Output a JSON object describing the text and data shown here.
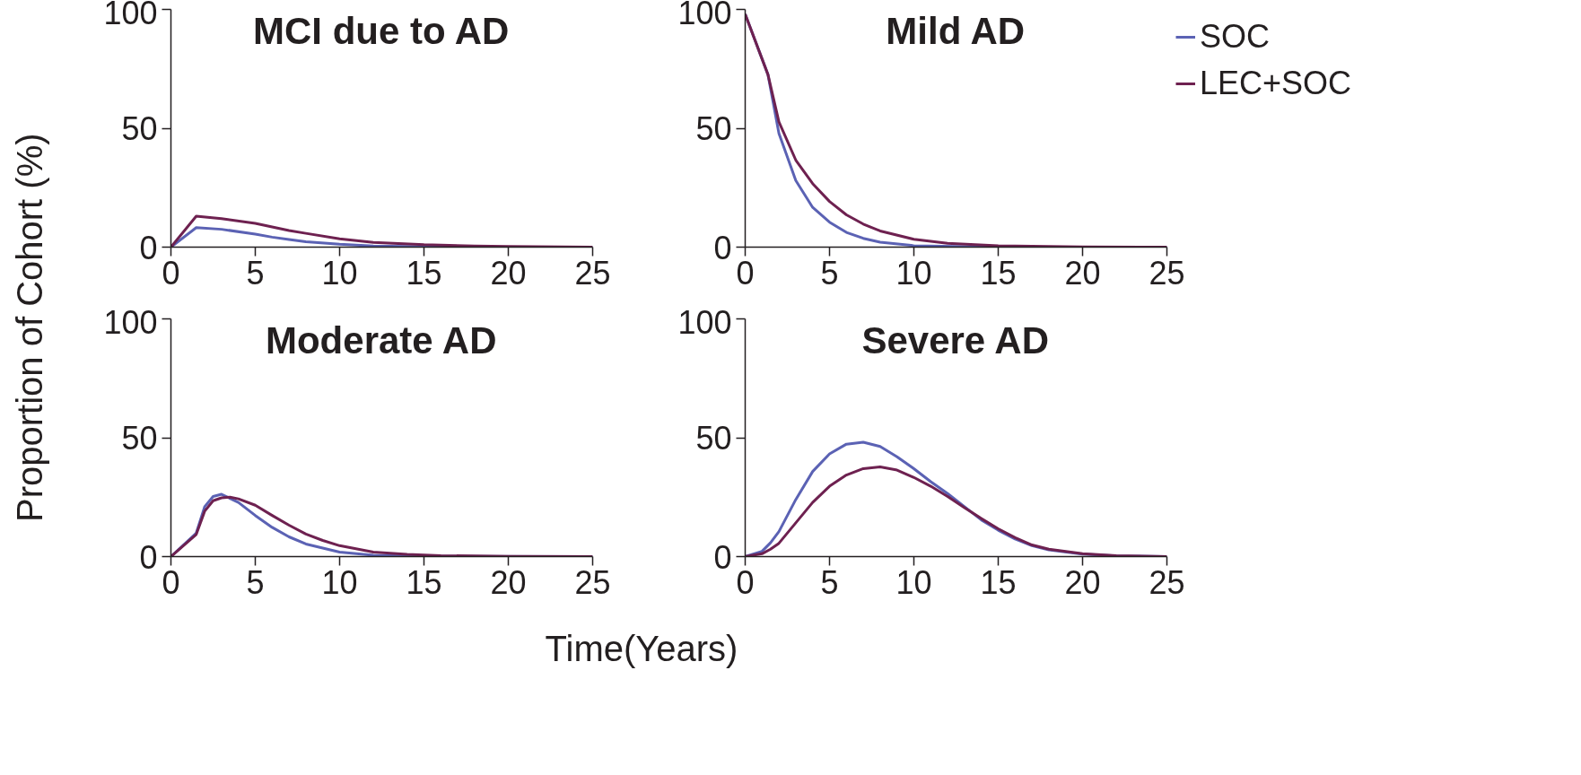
{
  "chart_data": [
    {
      "type": "line",
      "title": "MCI due to AD",
      "ylabel": "Proportion of Cohort (%)",
      "xlim": [
        0,
        25
      ],
      "xticks": [
        0,
        5,
        10,
        15,
        20,
        25
      ],
      "ylim": [
        0,
        100
      ],
      "yticks": [
        0,
        50,
        100
      ],
      "grid": false,
      "legend": false,
      "series": [
        {
          "color": "#5b62b4",
          "x": [
            0,
            1.5,
            3,
            5,
            6,
            7,
            8,
            10,
            12,
            15,
            20,
            25
          ],
          "values": [
            0,
            8.2,
            7.5,
            5.5,
            4.2,
            3.2,
            2.3,
            1.2,
            0.5,
            0.2,
            0,
            0
          ]
        },
        {
          "color": "#6e2150",
          "x": [
            0,
            1.5,
            3,
            5,
            6,
            7,
            8,
            10,
            12,
            15,
            18,
            20,
            25
          ],
          "values": [
            0,
            13,
            12,
            10,
            8.5,
            7,
            5.8,
            3.5,
            2,
            1,
            0.5,
            0.3,
            0
          ]
        }
      ]
    },
    {
      "type": "line",
      "title": "Mild AD",
      "xlim": [
        0,
        25
      ],
      "xticks": [
        0,
        5,
        10,
        15,
        20,
        25
      ],
      "ylim": [
        0,
        100
      ],
      "yticks": [
        0,
        50,
        100
      ],
      "grid": false,
      "legend": "right",
      "series": [
        {
          "name": "SOC",
          "color": "#5b62b4",
          "x": [
            0,
            1.35,
            2,
            3,
            4,
            5,
            6,
            7,
            8,
            10,
            15,
            25
          ],
          "values": [
            98,
            72.6,
            47.8,
            28,
            16.7,
            10.5,
            6.2,
            3.7,
            2.1,
            0.6,
            0,
            0
          ]
        },
        {
          "name": "LEC+SOC",
          "color": "#6e2150",
          "x": [
            0,
            1.35,
            2,
            3,
            4,
            5,
            6,
            7,
            8,
            10,
            12,
            15,
            20,
            25
          ],
          "values": [
            98,
            72.6,
            52.7,
            36.6,
            26.7,
            19.2,
            13.6,
            9.7,
            6.8,
            3.3,
            1.6,
            0.6,
            0.1,
            0
          ]
        }
      ]
    },
    {
      "type": "line",
      "title": "Moderate AD",
      "xlabel": "Time(Years)",
      "xlim": [
        0,
        25
      ],
      "xticks": [
        0,
        5,
        10,
        15,
        20,
        25
      ],
      "ylim": [
        0,
        100
      ],
      "yticks": [
        0,
        50,
        100
      ],
      "grid": false,
      "legend": false,
      "series": [
        {
          "color": "#5b62b4",
          "x": [
            0,
            1.5,
            2,
            2.5,
            3,
            4,
            5,
            6,
            7,
            8,
            10,
            12,
            15,
            25
          ],
          "values": [
            0,
            9.9,
            21,
            25.3,
            26.2,
            22.8,
            17.3,
            12.3,
            8.3,
            5.3,
            1.9,
            0.6,
            0.1,
            0
          ]
        },
        {
          "color": "#6e2150",
          "x": [
            0,
            1.5,
            2,
            2.5,
            3,
            3.5,
            4,
            5,
            6,
            7,
            8,
            9,
            10,
            12,
            14,
            16,
            20,
            25
          ],
          "values": [
            0,
            9.3,
            19.1,
            23.5,
            24.7,
            25,
            24.3,
            21.6,
            17.3,
            13.2,
            9.5,
            6.8,
            4.6,
            1.9,
            0.9,
            0.4,
            0.1,
            0
          ]
        }
      ]
    },
    {
      "type": "line",
      "title": "Severe AD",
      "xlim": [
        0,
        25
      ],
      "xticks": [
        0,
        5,
        10,
        15,
        20,
        25
      ],
      "ylim": [
        0,
        100
      ],
      "yticks": [
        0,
        50,
        100
      ],
      "grid": false,
      "legend": false,
      "series": [
        {
          "color": "#5b62b4",
          "x": [
            0,
            1,
            1.5,
            2,
            3,
            4,
            5,
            6,
            7,
            8,
            9,
            10,
            11,
            12,
            13,
            14,
            15,
            16,
            17,
            18,
            20,
            22,
            25
          ],
          "values": [
            0,
            2.2,
            5.8,
            10.5,
            24,
            35.8,
            43.2,
            47.3,
            48.1,
            46.3,
            42,
            37,
            31.5,
            26.5,
            21,
            15.4,
            11.1,
            7.4,
            4.6,
            2.8,
            1,
            0.3,
            0
          ]
        },
        {
          "color": "#6e2150",
          "x": [
            0,
            1,
            1.5,
            2,
            3,
            4,
            5,
            6,
            7,
            8,
            9,
            10,
            11,
            12,
            13,
            14,
            15,
            16,
            17,
            18,
            20,
            22,
            25
          ],
          "values": [
            0,
            1.2,
            3.1,
            5.6,
            14.2,
            22.8,
            29.6,
            34.3,
            37,
            37.7,
            36.4,
            33.3,
            29.6,
            25.3,
            20.6,
            16,
            11.7,
            8,
            4.9,
            3.1,
            1.2,
            0.4,
            0
          ]
        }
      ]
    }
  ]
}
